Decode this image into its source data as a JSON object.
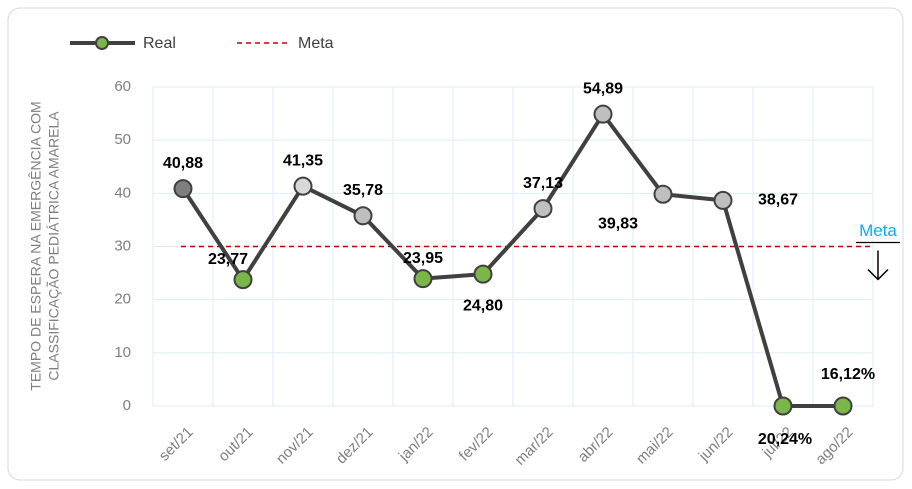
{
  "chart_data": {
    "type": "line",
    "y_label": [
      "TEMPO DE ESPERA NA EMERGÊNCIA COM",
      "CLASSIFICAÇÃO PEDIÁTRICA AMARELA"
    ],
    "categories": [
      "set/21",
      "out/21",
      "nov/21",
      "dez/21",
      "jan/22",
      "fev/22",
      "mar/22",
      "abr/22",
      "mai/22",
      "jun/22",
      "jul/22",
      "ago/22"
    ],
    "series": [
      {
        "name": "Real",
        "color": "#404040",
        "values": [
          40.88,
          23.77,
          41.35,
          35.78,
          23.95,
          24.8,
          37.13,
          54.89,
          39.83,
          38.67,
          0,
          0
        ],
        "value_labels": [
          "40,88",
          "23,77",
          "41,35",
          "35,78",
          "23,95",
          "24,80",
          "37,13",
          "54,89",
          "39,83",
          "38,67",
          null,
          null
        ],
        "marker_colors": [
          "#7f7f7f",
          "#7ab648",
          "#d9d9d9",
          "#bfbfbf",
          "#7ab648",
          "#7ab648",
          "#bfbfbf",
          "#bfbfbf",
          "#bfbfbf",
          "#bfbfbf",
          "#7ab648",
          "#7ab648"
        ]
      }
    ],
    "annotations": [
      "20,24%",
      "16,12%"
    ],
    "meta": {
      "name": "Meta",
      "value": 30,
      "color": "#c00000",
      "annotation": "Meta",
      "annotation_color": "#00b0f0"
    },
    "ylim": [
      0,
      60
    ],
    "yticks": [
      0,
      10,
      20,
      30,
      40,
      50,
      60
    ],
    "grid": true
  }
}
